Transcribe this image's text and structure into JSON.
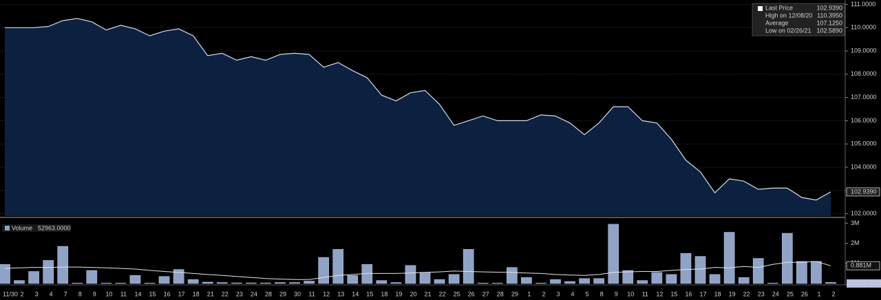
{
  "chart_data": [
    {
      "type": "area",
      "categories": [
        "11/30",
        "2",
        "3",
        "4",
        "7",
        "8",
        "9",
        "10",
        "11",
        "14",
        "15",
        "16",
        "17",
        "18",
        "21",
        "22",
        "23",
        "24",
        "28",
        "29",
        "30",
        "11",
        "12",
        "13",
        "14",
        "15",
        "18",
        "19",
        "20",
        "21",
        "22",
        "25",
        "26",
        "27",
        "28",
        "29",
        "1",
        "2",
        "3",
        "4",
        "5",
        "8",
        "9",
        "10",
        "11",
        "12",
        "15",
        "16",
        "17",
        "18",
        "19",
        "22",
        "23",
        "24",
        "25",
        "26",
        "1",
        "2"
      ],
      "series": [
        {
          "name": "Last Price",
          "color": "#d8dde6",
          "values": [
            110.0,
            110.0,
            110.0,
            110.05,
            110.3,
            110.395,
            110.25,
            109.9,
            110.1,
            109.95,
            109.65,
            109.85,
            109.95,
            109.65,
            108.8,
            108.9,
            108.6,
            108.75,
            108.6,
            108.85,
            108.9,
            108.85,
            108.3,
            108.5,
            108.15,
            107.85,
            107.1,
            106.85,
            107.2,
            107.3,
            106.7,
            105.8,
            106.0,
            106.2,
            106.0,
            106.0,
            106.0,
            106.25,
            106.2,
            105.9,
            105.4,
            105.9,
            106.6,
            106.6,
            106.0,
            105.9,
            105.2,
            104.3,
            103.8,
            102.9,
            103.5,
            103.4,
            103.05,
            103.1,
            103.1,
            102.7,
            102.589,
            102.939
          ]
        }
      ],
      "fill_color": "#0c2140",
      "ylim": [
        101.9,
        111.1
      ],
      "yticks": [
        {
          "value": 102,
          "label": "102.0000"
        },
        {
          "value": 103,
          "label": "103.0000"
        },
        {
          "value": 104,
          "label": "104.0000"
        },
        {
          "value": 105,
          "label": "105.0000"
        },
        {
          "value": 106,
          "label": "106.0000"
        },
        {
          "value": 107,
          "label": "107.0000"
        },
        {
          "value": 108,
          "label": "108.0000"
        },
        {
          "value": 109,
          "label": "109.0000"
        },
        {
          "value": 110,
          "label": "110.0000"
        },
        {
          "value": 111,
          "label": "111.0000"
        }
      ],
      "grid": true,
      "last_value_label": "102.9390",
      "legend": [
        {
          "label": "Last Price",
          "value": 102.939,
          "value_label": "102.9390"
        },
        {
          "label": "High on 12/08/20",
          "value": 110.395,
          "value_label": "110.3950"
        },
        {
          "label": "Average",
          "value": 107.125,
          "value_label": "107.1250"
        },
        {
          "label": "Low on 02/26/21",
          "value": 102.589,
          "value_label": "102.5890"
        }
      ]
    },
    {
      "type": "bar",
      "series": [
        {
          "name": "Volume",
          "color": "#8fa3c7",
          "values": [
            950000,
            150000,
            600000,
            1150000,
            1850000,
            20000,
            650000,
            20000,
            20000,
            400000,
            20000,
            350000,
            700000,
            200000,
            70000,
            50000,
            30000,
            30000,
            30000,
            50000,
            50000,
            120000,
            1300000,
            1700000,
            400000,
            950000,
            150000,
            50000,
            900000,
            550000,
            200000,
            450000,
            1700000,
            20000,
            20000,
            800000,
            300000,
            20000,
            200000,
            100000,
            250000,
            250000,
            2950000,
            650000,
            150000,
            550000,
            450000,
            1500000,
            1350000,
            450000,
            2550000,
            300000,
            1250000,
            20000,
            2500000,
            1100000,
            1100000,
            52963
          ],
          "last_value_label": "52963.0000"
        },
        {
          "color": "#e6e6e6",
          "values": [
            750000,
            780000,
            800000,
            800000,
            820000,
            820000,
            800000,
            780000,
            750000,
            720000,
            650000,
            600000,
            550000,
            500000,
            450000,
            400000,
            350000,
            300000,
            250000,
            220000,
            200000,
            200000,
            300000,
            400000,
            450000,
            500000,
            500000,
            500000,
            520000,
            550000,
            580000,
            620000,
            600000,
            580000,
            560000,
            550000,
            520000,
            500000,
            450000,
            420000,
            400000,
            450000,
            550000,
            580000,
            600000,
            600000,
            650000,
            700000,
            720000,
            800000,
            780000,
            850000,
            800000,
            950000,
            1050000,
            1050000,
            1100000,
            881000
          ],
          "last_value_label": "0.881M"
        }
      ],
      "ylim": [
        0,
        3150000
      ],
      "yticks": [
        {
          "value": 1000000,
          "label": "1M"
        },
        {
          "value": 2000000,
          "label": "2M"
        },
        {
          "value": 3000000,
          "label": "3M"
        }
      ]
    }
  ]
}
